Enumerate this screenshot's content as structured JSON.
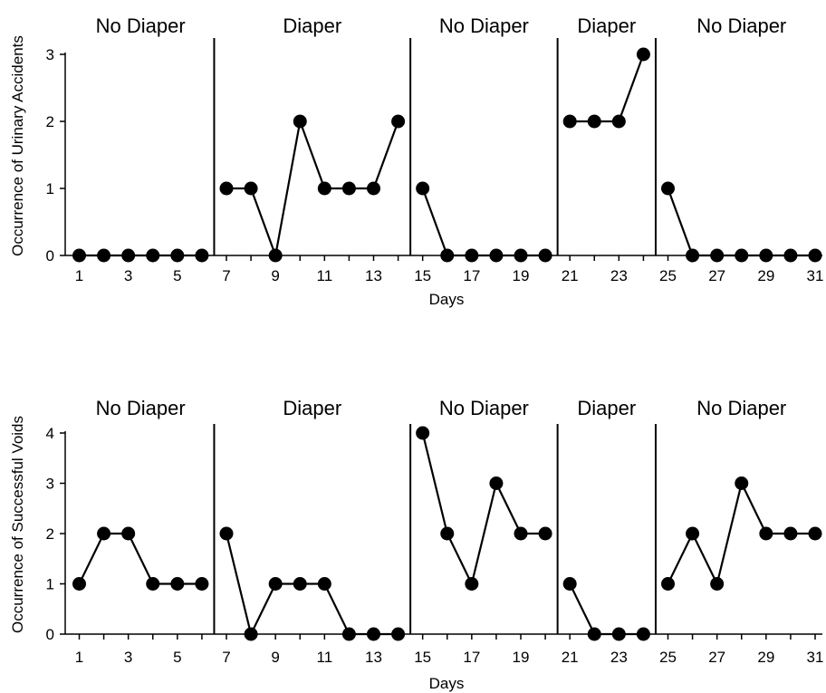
{
  "chart_data": [
    {
      "type": "line",
      "title": "",
      "xlabel": "Days",
      "ylabel": "Occurrence of Urinary Accidents",
      "xlim": [
        1,
        31
      ],
      "ylim": [
        0,
        3
      ],
      "x_ticks": [
        1,
        3,
        5,
        7,
        9,
        11,
        13,
        15,
        17,
        19,
        21,
        23,
        25,
        27,
        29,
        31
      ],
      "y_ticks": [
        0,
        1,
        2,
        3
      ],
      "grid": false,
      "phases": [
        {
          "label": "No Diaper",
          "start": 1,
          "end": 6
        },
        {
          "label": "Diaper",
          "start": 7,
          "end": 14
        },
        {
          "label": "No Diaper",
          "start": 15,
          "end": 20
        },
        {
          "label": "Diaper",
          "start": 21,
          "end": 24
        },
        {
          "label": "No Diaper",
          "start": 25,
          "end": 31
        }
      ],
      "x": [
        1,
        2,
        3,
        4,
        5,
        6,
        7,
        8,
        9,
        10,
        11,
        12,
        13,
        14,
        15,
        16,
        17,
        18,
        19,
        20,
        21,
        22,
        23,
        24,
        25,
        26,
        27,
        28,
        29,
        30,
        31
      ],
      "values": [
        0,
        0,
        0,
        0,
        0,
        0,
        1,
        1,
        0,
        2,
        1,
        1,
        1,
        2,
        1,
        0,
        0,
        0,
        0,
        0,
        2,
        2,
        2,
        3,
        1,
        0,
        0,
        0,
        0,
        0,
        0
      ]
    },
    {
      "type": "line",
      "title": "",
      "xlabel": "Days",
      "ylabel": "Occurrence of Successful Voids",
      "xlim": [
        1,
        31
      ],
      "ylim": [
        0,
        4
      ],
      "x_ticks": [
        1,
        3,
        5,
        7,
        9,
        11,
        13,
        15,
        17,
        19,
        21,
        23,
        25,
        27,
        29,
        31
      ],
      "y_ticks": [
        0,
        1,
        2,
        3,
        4
      ],
      "grid": false,
      "phases": [
        {
          "label": "No Diaper",
          "start": 1,
          "end": 6
        },
        {
          "label": "Diaper",
          "start": 7,
          "end": 14
        },
        {
          "label": "No Diaper",
          "start": 15,
          "end": 20
        },
        {
          "label": "Diaper",
          "start": 21,
          "end": 24
        },
        {
          "label": "No Diaper",
          "start": 25,
          "end": 31
        }
      ],
      "x": [
        1,
        2,
        3,
        4,
        5,
        6,
        7,
        8,
        9,
        10,
        11,
        12,
        13,
        14,
        15,
        16,
        17,
        18,
        19,
        20,
        21,
        22,
        23,
        24,
        25,
        26,
        27,
        28,
        29,
        30,
        31
      ],
      "values": [
        1,
        2,
        2,
        1,
        1,
        1,
        2,
        0,
        1,
        1,
        1,
        0,
        0,
        0,
        4,
        2,
        1,
        3,
        2,
        2,
        1,
        0,
        0,
        0,
        1,
        2,
        1,
        3,
        2,
        2,
        2
      ]
    }
  ]
}
